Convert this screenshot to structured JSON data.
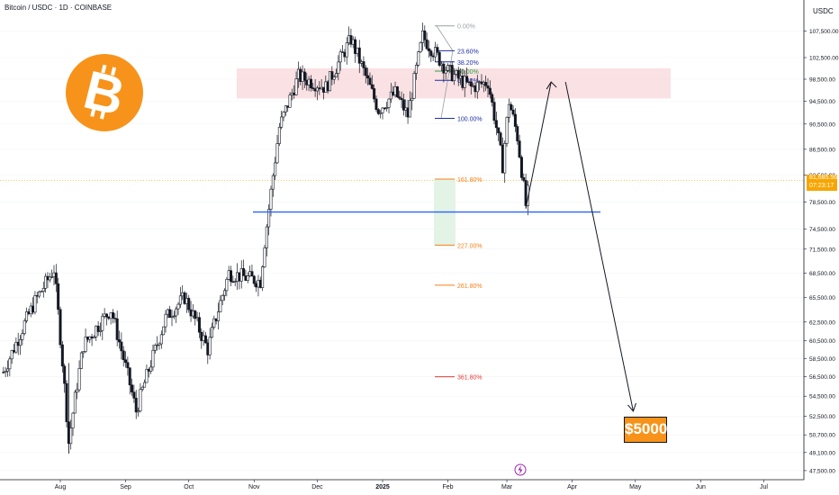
{
  "header": {
    "symbol_title": "Bitcoin / USDC · 1D · COINBASE",
    "currency": "USDC"
  },
  "price_tag": {
    "price": "81,685.56",
    "countdown": "07:23:17"
  },
  "target_label": "$5000",
  "colors": {
    "up_candle": "#131722",
    "down_candle": "#131722",
    "support_line": "#2962ff",
    "resistance_zone": "#f8d7da",
    "fib_blue": "#1f2ea6",
    "fib_green": "#2e9e44",
    "fib_orange": "#f57f17",
    "fib_red": "#e53935",
    "bitcoin_orange": "#f7931a",
    "price_tag": "#f7a600"
  },
  "chart_data": {
    "type": "candlestick",
    "title": "Bitcoin / USDC · 1D · COINBASE",
    "y_axis": {
      "unit": "USDC",
      "ticks": [
        "107,500.00",
        "102,500.00",
        "98,500.00",
        "94,500.00",
        "90,500.00",
        "86,500.00",
        "82,500.00",
        "78,500.00",
        "74,500.00",
        "71,500.00",
        "68,500.00",
        "65,500.00",
        "62,500.00",
        "60,500.00",
        "58,500.00",
        "56,500.00",
        "54,500.00",
        "52,500.00",
        "50,700.00",
        "49,100.00",
        "47,500.00"
      ],
      "range": [
        47000,
        110000
      ]
    },
    "x_axis": {
      "ticks": [
        "Aug",
        "Sep",
        "Oct",
        "Nov",
        "Dec",
        "2025",
        "Feb",
        "Mar",
        "Apr",
        "May",
        "Jun",
        "Jul"
      ]
    },
    "last_price": 81685.56,
    "support_level": 77000,
    "resistance_zone": [
      95000,
      100500
    ],
    "fib_levels": [
      {
        "label": "0.00%",
        "price": 108500,
        "color": "#9aa0a6"
      },
      {
        "label": "23.60%",
        "price": 103800,
        "color": "#1f2ea6"
      },
      {
        "label": "38.20%",
        "price": 101700,
        "color": "#1f2ea6"
      },
      {
        "label": "50.00%",
        "price": 100000,
        "color": "#2e9e44"
      },
      {
        "label": "61.80%",
        "price": 98300,
        "color": "#1f2ea6"
      },
      {
        "label": "100.00%",
        "price": 91500,
        "color": "#1f2ea6"
      },
      {
        "label": "161.80%",
        "price": 81900,
        "color": "#f57f17"
      },
      {
        "label": "227.00%",
        "price": 72100,
        "color": "#f57f17"
      },
      {
        "label": "261.80%",
        "price": 67000,
        "color": "#f57f17"
      },
      {
        "label": "361.80%",
        "price": 56500,
        "color": "#e53935"
      }
    ],
    "projection": [
      {
        "date": "2025-03-10",
        "price": 77500
      },
      {
        "date": "2025-03-22",
        "price": 98000
      },
      {
        "date": "2025-04-30",
        "price": 53000
      }
    ],
    "target": 5000,
    "price_path": [
      {
        "date": "2024-07-05",
        "price": 57000
      },
      {
        "date": "2024-07-20",
        "price": 65000
      },
      {
        "date": "2024-07-29",
        "price": 69000
      },
      {
        "date": "2024-08-05",
        "price": 50000
      },
      {
        "date": "2024-08-12",
        "price": 60000
      },
      {
        "date": "2024-08-25",
        "price": 64000
      },
      {
        "date": "2024-09-06",
        "price": 53000
      },
      {
        "date": "2024-09-20",
        "price": 63000
      },
      {
        "date": "2024-09-29",
        "price": 65500
      },
      {
        "date": "2024-10-10",
        "price": 59500
      },
      {
        "date": "2024-10-20",
        "price": 68500
      },
      {
        "date": "2024-11-04",
        "price": 67500
      },
      {
        "date": "2024-11-13",
        "price": 90000
      },
      {
        "date": "2024-11-22",
        "price": 99000
      },
      {
        "date": "2024-12-05",
        "price": 97000
      },
      {
        "date": "2024-12-17",
        "price": 106000
      },
      {
        "date": "2024-12-30",
        "price": 93000
      },
      {
        "date": "2025-01-07",
        "price": 96000
      },
      {
        "date": "2025-01-13",
        "price": 92000
      },
      {
        "date": "2025-01-20",
        "price": 106500
      },
      {
        "date": "2025-02-01",
        "price": 100000
      },
      {
        "date": "2025-02-12",
        "price": 97000
      },
      {
        "date": "2025-02-20",
        "price": 98000
      },
      {
        "date": "2025-02-27",
        "price": 84000
      },
      {
        "date": "2025-03-02",
        "price": 94500
      },
      {
        "date": "2025-03-06",
        "price": 88500
      },
      {
        "date": "2025-03-10",
        "price": 78000
      },
      {
        "date": "2025-03-12",
        "price": 81700
      }
    ]
  }
}
